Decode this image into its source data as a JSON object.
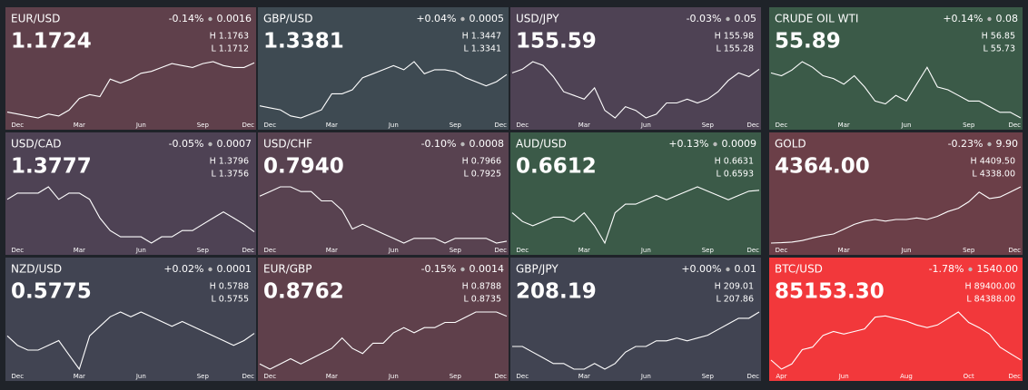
{
  "chart_data": [
    {
      "type": "line",
      "title": "EUR/USD",
      "change": "-0.14%",
      "change_value": "0.0016",
      "price": "1.1724",
      "high": "H 1.1763",
      "low": "L 1.1712",
      "color": "#5f404b",
      "categories": [
        null,
        "Dec",
        null,
        null,
        null,
        null,
        null,
        "Mar",
        null,
        null,
        null,
        null,
        null,
        "Jun",
        null,
        null,
        null,
        null,
        null,
        "Sep",
        null,
        null,
        null,
        null,
        "Dec"
      ],
      "values": [
        1.045,
        1.04,
        1.035,
        1.03,
        1.04,
        1.035,
        1.05,
        1.08,
        1.09,
        1.085,
        1.13,
        1.12,
        1.13,
        1.145,
        1.15,
        1.16,
        1.17,
        1.165,
        1.16,
        1.17,
        1.175,
        1.165,
        1.16,
        1.16,
        1.172
      ]
    },
    {
      "type": "line",
      "title": "GBP/USD",
      "change": "+0.04%",
      "change_value": "0.0005",
      "price": "1.3381",
      "high": "H 1.3447",
      "low": "L 1.3341",
      "color": "#3e4a52",
      "categories": [
        null,
        "Dec",
        null,
        null,
        null,
        null,
        null,
        "Mar",
        null,
        null,
        null,
        null,
        null,
        "Jun",
        null,
        null,
        null,
        null,
        null,
        "Sep",
        null,
        null,
        null,
        null,
        "Dec"
      ],
      "values": [
        1.26,
        1.255,
        1.25,
        1.235,
        1.23,
        1.24,
        1.25,
        1.29,
        1.29,
        1.3,
        1.33,
        1.34,
        1.35,
        1.36,
        1.35,
        1.37,
        1.34,
        1.35,
        1.35,
        1.345,
        1.33,
        1.32,
        1.31,
        1.32,
        1.338
      ]
    },
    {
      "type": "line",
      "title": "USD/JPY",
      "change": "-0.03%",
      "change_value": "0.05",
      "price": "155.59",
      "high": "H 155.98",
      "low": "L 155.28",
      "color": "#4e4254",
      "categories": [
        null,
        "Dec",
        null,
        null,
        null,
        null,
        null,
        "Mar",
        null,
        null,
        null,
        null,
        null,
        "Jun",
        null,
        null,
        null,
        null,
        null,
        "Sep",
        null,
        null,
        null,
        null,
        "Dec"
      ],
      "values": [
        155,
        156,
        158,
        157,
        154,
        150,
        149,
        148,
        151,
        145,
        143,
        146,
        145,
        143,
        144,
        147,
        147,
        148,
        147,
        148,
        150,
        153,
        155,
        154,
        156
      ]
    },
    {
      "type": "line",
      "title": "CRUDE OIL WTI",
      "change": "+0.14%",
      "change_value": "0.08",
      "price": "55.89",
      "high": "H 56.85",
      "low": "L 55.73",
      "color": "#3b5a48",
      "categories": [
        null,
        "Dec",
        null,
        null,
        null,
        null,
        null,
        "Mar",
        null,
        null,
        null,
        null,
        null,
        "Jun",
        null,
        null,
        null,
        null,
        null,
        "Sep",
        null,
        null,
        null,
        null,
        "Dec"
      ],
      "values": [
        72,
        71,
        73,
        76,
        74,
        71,
        70,
        68,
        71,
        67,
        62,
        61,
        64,
        62,
        68,
        74,
        67,
        66,
        64,
        62,
        62,
        60,
        58,
        58,
        56
      ]
    },
    {
      "type": "line",
      "title": "USD/CAD",
      "change": "-0.05%",
      "change_value": "0.0007",
      "price": "1.3777",
      "high": "H 1.3796",
      "low": "L 1.3756",
      "color": "#4e4254",
      "categories": [
        null,
        "Dec",
        null,
        null,
        null,
        null,
        null,
        "Mar",
        null,
        null,
        null,
        null,
        null,
        "Jun",
        null,
        null,
        null,
        null,
        null,
        "Sep",
        null,
        null,
        null,
        null,
        "Dec"
      ],
      "values": [
        1.43,
        1.44,
        1.44,
        1.44,
        1.45,
        1.43,
        1.44,
        1.44,
        1.43,
        1.4,
        1.38,
        1.37,
        1.37,
        1.37,
        1.36,
        1.37,
        1.37,
        1.38,
        1.38,
        1.39,
        1.4,
        1.41,
        1.4,
        1.39,
        1.378
      ]
    },
    {
      "type": "line",
      "title": "USD/CHF",
      "change": "-0.10%",
      "change_value": "0.0008",
      "price": "0.7940",
      "high": "H 0.7966",
      "low": "L 0.7925",
      "color": "#584250",
      "categories": [
        null,
        "Dec",
        null,
        null,
        null,
        null,
        null,
        "Mar",
        null,
        null,
        null,
        null,
        null,
        "Jun",
        null,
        null,
        null,
        null,
        null,
        "Sep",
        null,
        null,
        null,
        null,
        "Dec"
      ],
      "values": [
        0.89,
        0.9,
        0.91,
        0.91,
        0.9,
        0.9,
        0.88,
        0.88,
        0.86,
        0.82,
        0.83,
        0.82,
        0.81,
        0.8,
        0.79,
        0.8,
        0.8,
        0.8,
        0.79,
        0.8,
        0.8,
        0.8,
        0.8,
        0.79,
        0.794
      ]
    },
    {
      "type": "line",
      "title": "AUD/USD",
      "change": "+0.13%",
      "change_value": "0.0009",
      "price": "0.6612",
      "high": "H 0.6631",
      "low": "L 0.6593",
      "color": "#3b5a48",
      "categories": [
        null,
        "Dec",
        null,
        null,
        null,
        null,
        null,
        "Mar",
        null,
        null,
        null,
        null,
        null,
        "Jun",
        null,
        null,
        null,
        null,
        null,
        "Sep",
        null,
        null,
        null,
        null,
        "Dec"
      ],
      "values": [
        0.635,
        0.625,
        0.62,
        0.625,
        0.63,
        0.63,
        0.625,
        0.635,
        0.62,
        0.6,
        0.635,
        0.645,
        0.645,
        0.65,
        0.655,
        0.65,
        0.655,
        0.66,
        0.665,
        0.66,
        0.655,
        0.65,
        0.655,
        0.66,
        0.661
      ]
    },
    {
      "type": "line",
      "title": "GOLD",
      "change": "-0.23%",
      "change_value": "9.90",
      "price": "4364.00",
      "high": "H 4409.50",
      "low": "L 4338.00",
      "color": "#6b3f48",
      "categories": [
        null,
        "Dec",
        null,
        null,
        null,
        null,
        null,
        "Mar",
        null,
        null,
        null,
        null,
        null,
        "Jun",
        null,
        null,
        null,
        null,
        null,
        "Sep",
        null,
        null,
        null,
        null,
        "Dec"
      ],
      "values": [
        2620,
        2630,
        2650,
        2700,
        2780,
        2850,
        2900,
        3050,
        3200,
        3300,
        3350,
        3300,
        3350,
        3350,
        3400,
        3350,
        3450,
        3600,
        3700,
        3900,
        4200,
        4000,
        4050,
        4200,
        4364
      ]
    },
    {
      "type": "line",
      "title": "NZD/USD",
      "change": "+0.02%",
      "change_value": "0.0001",
      "price": "0.5775",
      "high": "H 0.5788",
      "low": "L 0.5755",
      "color": "#414452",
      "categories": [
        null,
        "Dec",
        null,
        null,
        null,
        null,
        null,
        "Mar",
        null,
        null,
        null,
        null,
        null,
        "Jun",
        null,
        null,
        null,
        null,
        null,
        "Sep",
        null,
        null,
        null,
        null,
        "Dec"
      ],
      "values": [
        0.575,
        0.565,
        0.56,
        0.56,
        0.565,
        0.57,
        0.555,
        0.54,
        0.575,
        0.585,
        0.595,
        0.6,
        0.595,
        0.6,
        0.595,
        0.59,
        0.585,
        0.59,
        0.585,
        0.58,
        0.575,
        0.57,
        0.565,
        0.57,
        0.5775
      ]
    },
    {
      "type": "line",
      "title": "EUR/GBP",
      "change": "-0.15%",
      "change_value": "0.0014",
      "price": "0.8762",
      "high": "H 0.8788",
      "low": "L 0.8735",
      "color": "#5f404b",
      "categories": [
        null,
        "Dec",
        null,
        null,
        null,
        null,
        null,
        "Mar",
        null,
        null,
        null,
        null,
        null,
        "Jun",
        null,
        null,
        null,
        null,
        null,
        "Sep",
        null,
        null,
        null,
        null,
        "Dec"
      ],
      "values": [
        0.83,
        0.825,
        0.83,
        0.835,
        0.83,
        0.835,
        0.84,
        0.845,
        0.855,
        0.845,
        0.84,
        0.85,
        0.85,
        0.86,
        0.865,
        0.86,
        0.865,
        0.865,
        0.87,
        0.87,
        0.875,
        0.88,
        0.88,
        0.88,
        0.876
      ]
    },
    {
      "type": "line",
      "title": "GBP/JPY",
      "change": "+0.00%",
      "change_value": "0.01",
      "price": "208.19",
      "high": "H 209.01",
      "low": "L 207.86",
      "color": "#414452",
      "categories": [
        null,
        "Dec",
        null,
        null,
        null,
        null,
        null,
        "Mar",
        null,
        null,
        null,
        null,
        null,
        "Jun",
        null,
        null,
        null,
        null,
        null,
        "Sep",
        null,
        null,
        null,
        null,
        "Dec"
      ],
      "values": [
        196,
        196,
        194,
        192,
        190,
        190,
        188,
        188,
        190,
        188,
        190,
        194,
        196,
        196,
        198,
        198,
        199,
        198,
        199,
        200,
        202,
        204,
        206,
        206,
        208.2
      ]
    },
    {
      "type": "line",
      "title": "BTC/USD",
      "change": "-1.78%",
      "change_value": "1540.00",
      "price": "85153.30",
      "high": "H 89400.00",
      "low": "L 84388.00",
      "color": "#f2383b",
      "categories": [
        null,
        "Apr",
        null,
        null,
        null,
        null,
        null,
        "Jun",
        null,
        null,
        null,
        null,
        null,
        "Aug",
        null,
        null,
        null,
        null,
        null,
        "Oct",
        null,
        null,
        null,
        null,
        "Dec"
      ],
      "values": [
        85000,
        78000,
        82000,
        93000,
        95000,
        104000,
        107000,
        105000,
        107000,
        109000,
        118000,
        119000,
        117000,
        115000,
        112000,
        110000,
        112000,
        117000,
        122000,
        114000,
        110000,
        105000,
        95000,
        90000,
        85153
      ]
    }
  ]
}
